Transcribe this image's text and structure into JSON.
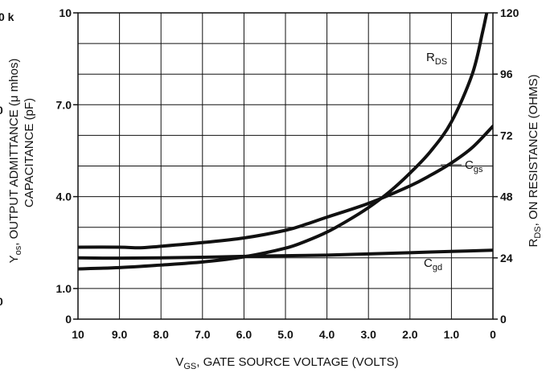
{
  "chart_data": {
    "type": "line",
    "x": {
      "label_main": "V",
      "label_sub": "GS",
      "label_rest": ", GATE SOURCE VOLTAGE (VOLTS)",
      "range": [
        10,
        0
      ],
      "ticks": [
        "10",
        "9.0",
        "8.0",
        "7.0",
        "6.0",
        "5.0",
        "4.0",
        "3.0",
        "2.0",
        "1.0",
        "0"
      ]
    },
    "y_left": {
      "range": [
        0,
        10
      ],
      "ticks": [
        {
          "value": 10,
          "label": "10"
        },
        {
          "value": 7,
          "label": "7.0"
        },
        {
          "value": 4,
          "label": "4.0"
        },
        {
          "value": 1,
          "label": "1.0"
        },
        {
          "value": 0,
          "label": "0"
        }
      ],
      "title_line1_main": "Y",
      "title_line1_sub": "os",
      "title_line1_rest": ", OUTPUT ADMITTANCE (μ mhos)",
      "title_line2": "CAPACITANCE (pF)",
      "clipped_outer_labels": [
        "0 k",
        "0",
        "0"
      ]
    },
    "y_right": {
      "range": [
        0,
        120
      ],
      "ticks": [
        "0",
        "24",
        "48",
        "72",
        "96",
        "120"
      ],
      "title_main": "R",
      "title_sub": "DS",
      "title_rest": ", ON RESISTANCE (OHMS)"
    },
    "series": [
      {
        "name_main": "R",
        "name_sub": "DS",
        "axis": "right",
        "points": [
          [
            10,
            19.7
          ],
          [
            9,
            20.2
          ],
          [
            8,
            21.2
          ],
          [
            7,
            22.4
          ],
          [
            6,
            24.4
          ],
          [
            5,
            27.8
          ],
          [
            4.5,
            30.6
          ],
          [
            4,
            34.1
          ],
          [
            3.5,
            38.6
          ],
          [
            3,
            43.7
          ],
          [
            2.5,
            49.8
          ],
          [
            2,
            57.2
          ],
          [
            1.5,
            65.8
          ],
          [
            1,
            77.3
          ],
          [
            0.5,
            95.9
          ],
          [
            0.25,
            112.4
          ],
          [
            0.1,
            124
          ]
        ]
      },
      {
        "name_main": "C",
        "name_sub": "gs",
        "axis": "left",
        "points": [
          [
            10,
            2.35
          ],
          [
            9,
            2.35
          ],
          [
            8.5,
            2.33
          ],
          [
            8,
            2.38
          ],
          [
            7,
            2.5
          ],
          [
            6,
            2.65
          ],
          [
            5,
            2.9
          ],
          [
            4.5,
            3.1
          ],
          [
            4,
            3.33
          ],
          [
            3,
            3.78
          ],
          [
            2,
            4.35
          ],
          [
            1.5,
            4.7
          ],
          [
            1,
            5.1
          ],
          [
            0.5,
            5.6
          ],
          [
            0,
            6.3
          ]
        ]
      },
      {
        "name_main": "C",
        "name_sub": "gd",
        "axis": "left",
        "points": [
          [
            10,
            2.0
          ],
          [
            9,
            1.99
          ],
          [
            8,
            2.0
          ],
          [
            7,
            2.02
          ],
          [
            6,
            2.05
          ],
          [
            5,
            2.07
          ],
          [
            4,
            2.09
          ],
          [
            3,
            2.13
          ],
          [
            2,
            2.17
          ],
          [
            1,
            2.21
          ],
          [
            0,
            2.25
          ]
        ]
      }
    ],
    "grid": true
  }
}
